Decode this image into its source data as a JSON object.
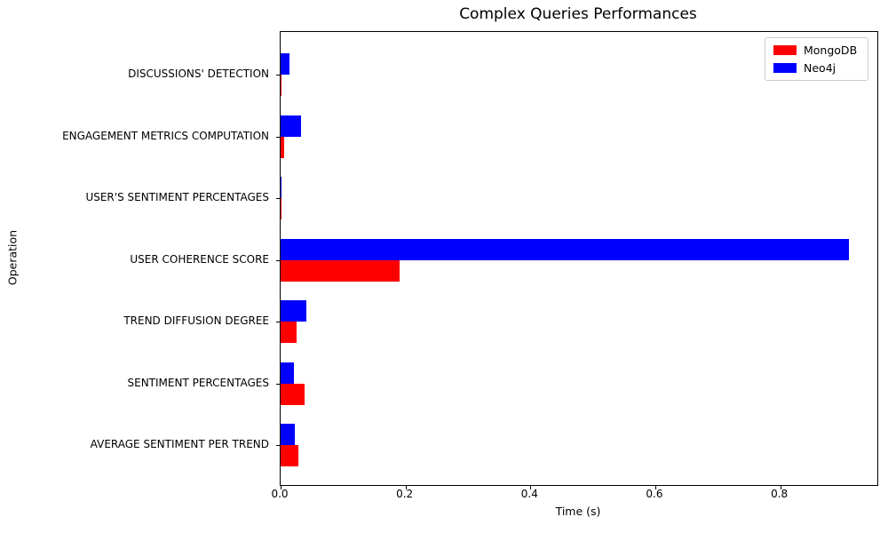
{
  "chart_data": {
    "type": "bar",
    "orientation": "horizontal",
    "title": "Complex Queries Performances",
    "xlabel": "Time (s)",
    "ylabel": "Operation",
    "xlim": [
      0,
      0.9555
    ],
    "xticks": [
      0.0,
      0.2,
      0.4,
      0.6,
      0.8
    ],
    "grid": false,
    "legend_position": "upper right",
    "categories_top_to_bottom": [
      "DISCUSSIONS' DETECTION",
      "ENGAGEMENT METRICS COMPUTATION",
      "USER'S SENTIMENT PERCENTAGES",
      "USER COHERENCE SCORE",
      "TREND DIFFUSION DEGREE",
      "SENTIMENT PERCENTAGES",
      "AVERAGE SENTIMENT PER TREND"
    ],
    "series": [
      {
        "name": "MongoDB",
        "color": "#ff0000",
        "values_top_to_bottom": [
          0.002,
          0.005,
          0.002,
          0.19,
          0.025,
          0.039,
          0.028
        ]
      },
      {
        "name": "Neo4j",
        "color": "#0000ff",
        "values_top_to_bottom": [
          0.014,
          0.033,
          0.0005,
          0.91,
          0.041,
          0.022,
          0.023
        ]
      }
    ]
  }
}
